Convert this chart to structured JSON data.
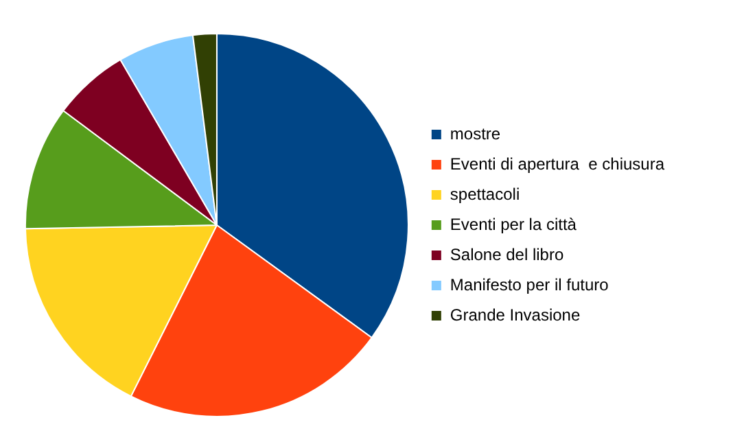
{
  "chart_data": {
    "type": "pie",
    "categories": [
      "mostre",
      "Eventi di apertura  e chiusura",
      "spettacoli",
      "Eventi per la città",
      "Salone del libro",
      "Manifesto per il futuro",
      "Grande Invasione"
    ],
    "values": [
      35,
      22.4,
      17.3,
      10.5,
      6.4,
      6.4,
      2.0
    ],
    "colors": [
      "#004586",
      "#ff420e",
      "#ffd320",
      "#579d1c",
      "#7e0021",
      "#83caff",
      "#314004"
    ],
    "legend": "right"
  }
}
